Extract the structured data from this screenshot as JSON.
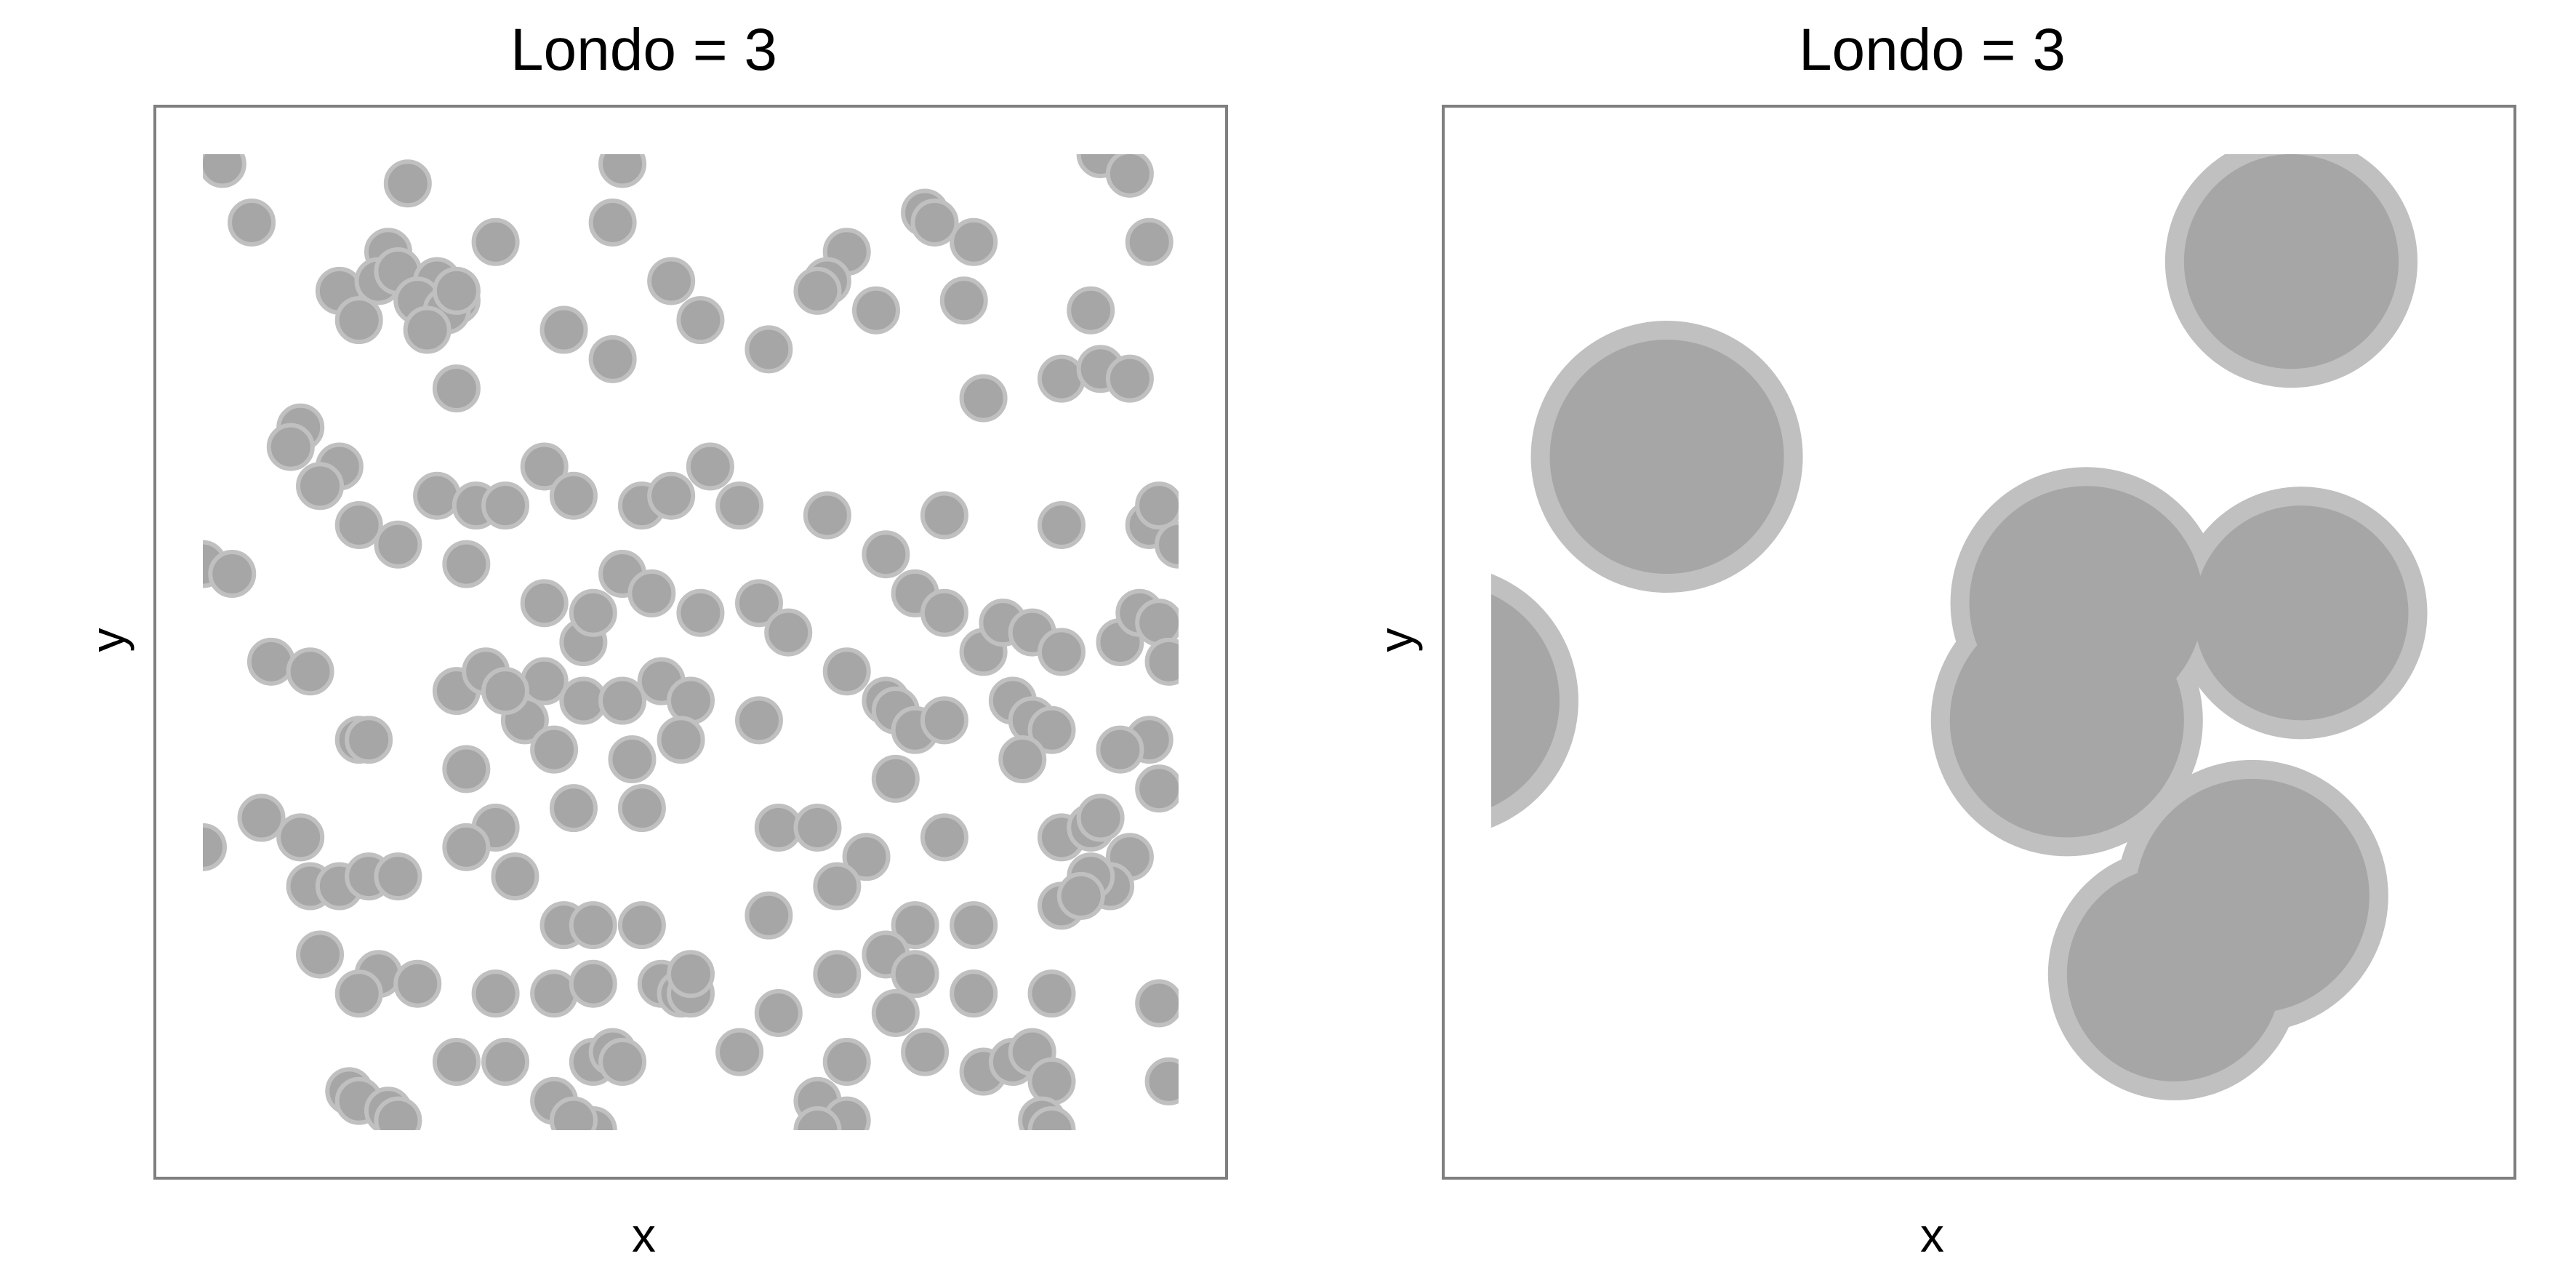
{
  "chart_data": [
    {
      "type": "scatter",
      "title": "Londo = 3",
      "xlabel": "x",
      "ylabel": "y",
      "xlim": [
        0,
        1
      ],
      "ylim": [
        0,
        1
      ],
      "show_ticks": false,
      "grid": false,
      "marker_color": "#a6a6a6",
      "outline_color": "#c0c0c0",
      "points": [
        [
          0.02,
          0.99
        ],
        [
          0.05,
          0.93
        ],
        [
          0.21,
          0.97
        ],
        [
          0.43,
          0.99
        ],
        [
          0.42,
          0.93
        ],
        [
          0.74,
          0.94
        ],
        [
          0.75,
          0.93
        ],
        [
          0.92,
          1.0
        ],
        [
          0.95,
          0.98
        ],
        [
          0.79,
          0.91
        ],
        [
          0.19,
          0.9
        ],
        [
          0.14,
          0.86
        ],
        [
          0.18,
          0.87
        ],
        [
          0.2,
          0.88
        ],
        [
          0.24,
          0.87
        ],
        [
          0.26,
          0.85
        ],
        [
          0.3,
          0.91
        ],
        [
          0.66,
          0.9
        ],
        [
          0.64,
          0.87
        ],
        [
          0.97,
          0.91
        ],
        [
          0.22,
          0.85
        ],
        [
          0.25,
          0.84
        ],
        [
          0.26,
          0.86
        ],
        [
          0.16,
          0.83
        ],
        [
          0.23,
          0.82
        ],
        [
          0.48,
          0.87
        ],
        [
          0.51,
          0.83
        ],
        [
          0.58,
          0.8
        ],
        [
          0.63,
          0.86
        ],
        [
          0.69,
          0.84
        ],
        [
          0.78,
          0.85
        ],
        [
          0.91,
          0.84
        ],
        [
          0.37,
          0.82
        ],
        [
          0.42,
          0.79
        ],
        [
          0.88,
          0.77
        ],
        [
          0.92,
          0.78
        ],
        [
          0.95,
          0.77
        ],
        [
          0.26,
          0.76
        ],
        [
          0.1,
          0.72
        ],
        [
          0.14,
          0.68
        ],
        [
          0.8,
          0.75
        ],
        [
          0.09,
          0.7
        ],
        [
          0.12,
          0.66
        ],
        [
          0.16,
          0.62
        ],
        [
          0.24,
          0.65
        ],
        [
          0.28,
          0.64
        ],
        [
          0.31,
          0.64
        ],
        [
          0.35,
          0.68
        ],
        [
          0.38,
          0.65
        ],
        [
          0.45,
          0.64
        ],
        [
          0.52,
          0.68
        ],
        [
          0.55,
          0.64
        ],
        [
          0.48,
          0.65
        ],
        [
          0.64,
          0.63
        ],
        [
          0.76,
          0.63
        ],
        [
          0.88,
          0.62
        ],
        [
          0.97,
          0.62
        ],
        [
          1.0,
          0.6
        ],
        [
          0.98,
          0.64
        ],
        [
          0.2,
          0.6
        ],
        [
          0.0,
          0.58
        ],
        [
          0.03,
          0.57
        ],
        [
          0.27,
          0.58
        ],
        [
          0.35,
          0.54
        ],
        [
          0.39,
          0.5
        ],
        [
          0.43,
          0.57
        ],
        [
          0.46,
          0.55
        ],
        [
          0.4,
          0.53
        ],
        [
          0.51,
          0.53
        ],
        [
          0.57,
          0.54
        ],
        [
          0.6,
          0.51
        ],
        [
          0.7,
          0.59
        ],
        [
          0.73,
          0.55
        ],
        [
          0.76,
          0.53
        ],
        [
          0.8,
          0.49
        ],
        [
          0.82,
          0.52
        ],
        [
          0.85,
          0.51
        ],
        [
          0.88,
          0.49
        ],
        [
          0.94,
          0.5
        ],
        [
          0.96,
          0.53
        ],
        [
          0.98,
          0.52
        ],
        [
          0.99,
          0.48
        ],
        [
          0.07,
          0.48
        ],
        [
          0.11,
          0.47
        ],
        [
          0.26,
          0.45
        ],
        [
          0.29,
          0.47
        ],
        [
          0.35,
          0.46
        ],
        [
          0.33,
          0.42
        ],
        [
          0.31,
          0.45
        ],
        [
          0.39,
          0.44
        ],
        [
          0.43,
          0.44
        ],
        [
          0.47,
          0.46
        ],
        [
          0.5,
          0.44
        ],
        [
          0.57,
          0.42
        ],
        [
          0.66,
          0.47
        ],
        [
          0.7,
          0.44
        ],
        [
          0.71,
          0.43
        ],
        [
          0.73,
          0.41
        ],
        [
          0.76,
          0.42
        ],
        [
          0.83,
          0.44
        ],
        [
          0.85,
          0.42
        ],
        [
          0.87,
          0.41
        ],
        [
          0.84,
          0.38
        ],
        [
          0.97,
          0.4
        ],
        [
          0.16,
          0.4
        ],
        [
          0.17,
          0.4
        ],
        [
          0.27,
          0.37
        ],
        [
          0.36,
          0.39
        ],
        [
          0.44,
          0.38
        ],
        [
          0.49,
          0.4
        ],
        [
          0.94,
          0.39
        ],
        [
          0.98,
          0.35
        ],
        [
          0.71,
          0.36
        ],
        [
          0.88,
          0.3
        ],
        [
          0.91,
          0.31
        ],
        [
          0.92,
          0.32
        ],
        [
          0.06,
          0.32
        ],
        [
          0.0,
          0.29
        ],
        [
          0.3,
          0.31
        ],
        [
          0.38,
          0.33
        ],
        [
          0.45,
          0.33
        ],
        [
          0.59,
          0.31
        ],
        [
          0.63,
          0.31
        ],
        [
          0.68,
          0.28
        ],
        [
          0.76,
          0.3
        ],
        [
          0.95,
          0.28
        ],
        [
          0.93,
          0.25
        ],
        [
          0.91,
          0.26
        ],
        [
          0.11,
          0.25
        ],
        [
          0.14,
          0.25
        ],
        [
          0.17,
          0.26
        ],
        [
          0.2,
          0.26
        ],
        [
          0.27,
          0.29
        ],
        [
          0.32,
          0.26
        ],
        [
          0.37,
          0.21
        ],
        [
          0.4,
          0.21
        ],
        [
          0.45,
          0.21
        ],
        [
          0.58,
          0.22
        ],
        [
          0.65,
          0.25
        ],
        [
          0.73,
          0.21
        ],
        [
          0.79,
          0.21
        ],
        [
          0.88,
          0.23
        ],
        [
          0.9,
          0.24
        ],
        [
          0.7,
          0.18
        ],
        [
          0.73,
          0.16
        ],
        [
          0.47,
          0.15
        ],
        [
          0.36,
          0.14
        ],
        [
          0.4,
          0.15
        ],
        [
          0.49,
          0.14
        ],
        [
          0.5,
          0.14
        ],
        [
          0.5,
          0.16
        ],
        [
          0.65,
          0.16
        ],
        [
          0.59,
          0.12
        ],
        [
          0.55,
          0.08
        ],
        [
          0.71,
          0.12
        ],
        [
          0.79,
          0.14
        ],
        [
          0.87,
          0.14
        ],
        [
          0.98,
          0.13
        ],
        [
          0.12,
          0.18
        ],
        [
          0.18,
          0.16
        ],
        [
          0.16,
          0.14
        ],
        [
          0.22,
          0.15
        ],
        [
          0.3,
          0.14
        ],
        [
          0.4,
          0.07
        ],
        [
          0.42,
          0.08
        ],
        [
          0.43,
          0.07
        ],
        [
          0.26,
          0.07
        ],
        [
          0.31,
          0.07
        ],
        [
          0.66,
          0.07
        ],
        [
          0.74,
          0.08
        ],
        [
          0.8,
          0.06
        ],
        [
          0.83,
          0.07
        ],
        [
          0.85,
          0.08
        ],
        [
          0.87,
          0.05
        ],
        [
          0.99,
          0.05
        ],
        [
          0.15,
          0.04
        ],
        [
          0.16,
          0.03
        ],
        [
          0.19,
          0.02
        ],
        [
          0.2,
          0.01
        ],
        [
          0.36,
          0.03
        ],
        [
          0.4,
          0.0
        ],
        [
          0.38,
          0.01
        ],
        [
          0.63,
          0.03
        ],
        [
          0.66,
          0.01
        ],
        [
          0.63,
          0.0
        ],
        [
          0.86,
          0.01
        ],
        [
          0.87,
          0.0
        ],
        [
          0.1,
          0.3
        ]
      ]
    },
    {
      "type": "area",
      "title": "Londo = 3",
      "xlabel": "x",
      "ylabel": "y",
      "xlim": [
        0,
        1
      ],
      "ylim": [
        0,
        1
      ],
      "show_ticks": false,
      "grid": false,
      "fill_color": "#a6a6a6",
      "outline_color": "#c0c0c0",
      "regions": [
        {
          "x": 0.82,
          "y": 0.89,
          "r": 0.11
        },
        {
          "x": 0.18,
          "y": 0.69,
          "r": 0.12
        },
        {
          "x": -0.05,
          "y": 0.44,
          "r": 0.12
        },
        {
          "x": 0.61,
          "y": 0.54,
          "r": 0.12
        },
        {
          "x": 0.59,
          "y": 0.42,
          "r": 0.12
        },
        {
          "x": 0.83,
          "y": 0.53,
          "r": 0.11
        },
        {
          "x": 0.78,
          "y": 0.24,
          "r": 0.12
        },
        {
          "x": 0.7,
          "y": 0.16,
          "r": 0.11
        }
      ]
    }
  ]
}
